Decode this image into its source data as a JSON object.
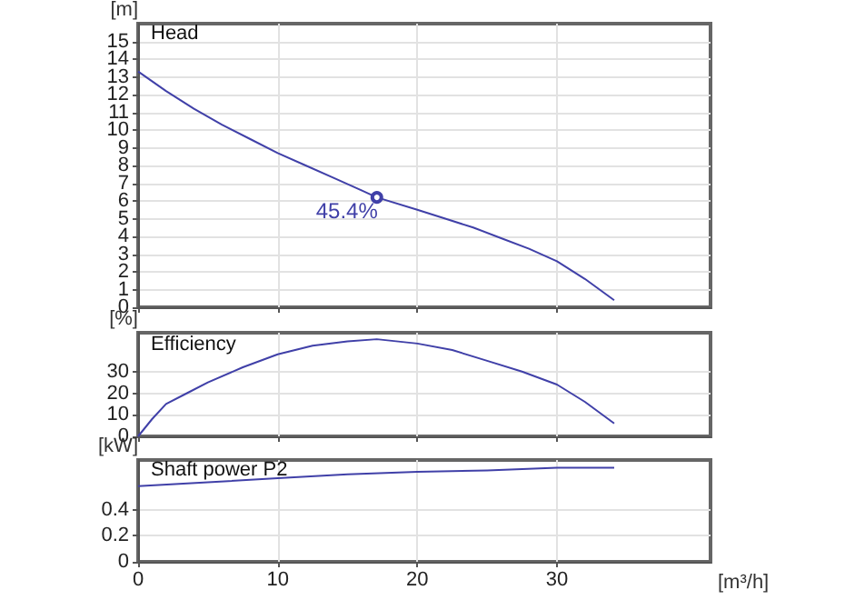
{
  "chart_data": [
    {
      "type": "line",
      "title": "Head",
      "ylabel": "[m]",
      "xlim": [
        0,
        41
      ],
      "xticks": [
        0,
        10,
        20,
        30
      ],
      "ylim": [
        0,
        16
      ],
      "yticks": [
        0,
        1,
        2,
        3,
        4,
        5,
        6,
        7,
        8,
        9,
        10,
        11,
        12,
        13,
        14,
        15
      ],
      "series": [
        {
          "color": "#4040a8",
          "x": [
            0,
            2,
            4,
            6,
            8,
            10,
            12,
            14,
            16,
            17.1,
            20,
            22,
            24,
            26,
            28,
            30,
            32,
            34.1
          ],
          "values": [
            13.3,
            12.2,
            11.2,
            10.3,
            9.5,
            8.7,
            8.0,
            7.3,
            6.6,
            6.2,
            5.5,
            5.0,
            4.5,
            3.9,
            3.3,
            2.6,
            1.6,
            0.4
          ]
        }
      ],
      "annotations": [
        {
          "text": "45.4%",
          "x": 17.1,
          "y": 6.2
        }
      ],
      "grid": true,
      "tick_labels": "y",
      "marker": "none"
    },
    {
      "type": "line",
      "title": "Efficiency",
      "ylabel": "[%]",
      "xlim": [
        0,
        41
      ],
      "xticks": [
        0,
        10,
        20,
        30
      ],
      "ylim": [
        0,
        48
      ],
      "yticks": [
        0,
        10,
        20,
        30
      ],
      "series": [
        {
          "color": "#4040a8",
          "x": [
            0,
            1,
            2,
            3.5,
            5,
            7.5,
            10,
            12.5,
            15,
            17.1,
            20,
            22.5,
            25,
            27.5,
            30,
            32,
            34.1
          ],
          "values": [
            0,
            8,
            15,
            20,
            25,
            32,
            38,
            42,
            44,
            45,
            43,
            40,
            35,
            30,
            24,
            16,
            6
          ]
        }
      ],
      "grid": true,
      "tick_labels": "y",
      "marker": "none"
    },
    {
      "type": "line",
      "title": "Shaft power P2",
      "ylabel": "[kW]",
      "xlabel": "[m³/h]",
      "xlim": [
        0,
        41
      ],
      "xticks": [
        0,
        10,
        20,
        30
      ],
      "ylim": [
        0,
        0.78
      ],
      "yticks": [
        0,
        0.2,
        0.4
      ],
      "series": [
        {
          "color": "#4040a8",
          "x": [
            0,
            5,
            10,
            15,
            20,
            25,
            30,
            34.1
          ],
          "values": [
            0.58,
            0.61,
            0.64,
            0.67,
            0.69,
            0.7,
            0.72,
            0.72
          ]
        }
      ],
      "grid": true,
      "marker": "none"
    }
  ]
}
